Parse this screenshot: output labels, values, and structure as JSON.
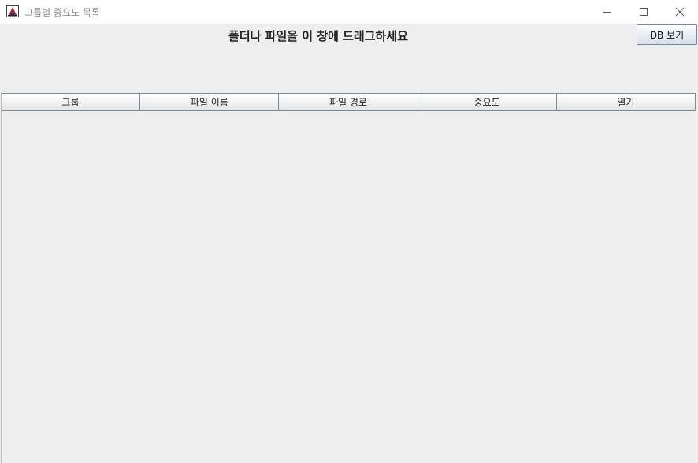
{
  "window": {
    "title": "그룹별 중요도 목록",
    "controls": {
      "minimize_icon": "minimize-icon",
      "maximize_icon": "maximize-icon",
      "close_icon": "close-icon"
    }
  },
  "main": {
    "drop_prompt": "폴더나 파일을 이 창에 드래그하세요",
    "db_button_label": "DB 보기"
  },
  "table": {
    "columns": [
      "그룹",
      "파일 이름",
      "파일 경로",
      "중요도",
      "열기"
    ],
    "rows": []
  }
}
